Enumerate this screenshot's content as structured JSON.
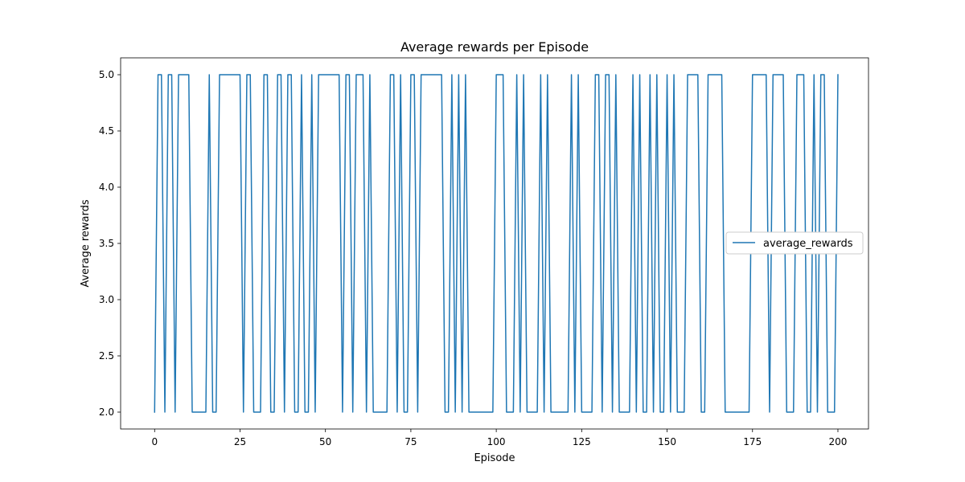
{
  "chart_data": {
    "type": "line",
    "title": "Average rewards per Episode",
    "xlabel": "Episode",
    "ylabel": "Average rewards",
    "xlim": [
      -9.95,
      208.95
    ],
    "ylim": [
      1.85,
      5.15
    ],
    "xticks": [
      0,
      25,
      50,
      75,
      100,
      125,
      150,
      175,
      200
    ],
    "yticks": [
      2.0,
      2.5,
      3.0,
      3.5,
      4.0,
      4.5,
      5.0
    ],
    "xtick_labels": [
      "0",
      "25",
      "50",
      "75",
      "100",
      "125",
      "150",
      "175",
      "200"
    ],
    "ytick_labels": [
      "2.0",
      "2.5",
      "3.0",
      "3.5",
      "4.0",
      "4.5",
      "5.0"
    ],
    "grid": false,
    "legend_position": "center-right",
    "series": [
      {
        "name": "average_rewards",
        "color": "#1f77b4",
        "values": [
          2,
          5,
          5,
          2,
          5,
          5,
          2,
          5,
          5,
          5,
          5,
          2,
          2,
          2,
          2,
          2,
          5,
          2,
          2,
          5,
          5,
          5,
          5,
          5,
          5,
          5,
          2,
          5,
          5,
          2,
          2,
          2,
          5,
          5,
          2,
          2,
          5,
          5,
          2,
          5,
          5,
          2,
          2,
          5,
          2,
          2,
          5,
          2,
          5,
          5,
          5,
          5,
          5,
          5,
          5,
          2,
          5,
          5,
          2,
          5,
          5,
          5,
          2,
          5,
          2,
          2,
          2,
          2,
          2,
          5,
          5,
          2,
          5,
          2,
          2,
          5,
          5,
          2,
          5,
          5,
          5,
          5,
          5,
          5,
          5,
          2,
          2,
          5,
          2,
          5,
          2,
          5,
          2,
          2,
          2,
          2,
          2,
          2,
          2,
          2,
          5,
          5,
          5,
          2,
          2,
          2,
          5,
          2,
          5,
          2,
          2,
          2,
          2,
          5,
          2,
          5,
          2,
          2,
          2,
          2,
          2,
          2,
          5,
          2,
          5,
          2,
          2,
          2,
          2,
          5,
          5,
          2,
          5,
          5,
          2,
          5,
          2,
          2,
          2,
          2,
          5,
          2,
          5,
          2,
          2,
          5,
          2,
          5,
          2,
          2,
          5,
          2,
          5,
          2,
          2,
          2,
          5,
          5,
          5,
          5,
          2,
          2,
          5,
          5,
          5,
          5,
          5,
          2,
          2,
          2,
          2,
          2,
          2,
          2,
          2,
          5,
          5,
          5,
          5,
          5,
          2,
          5,
          5,
          5,
          5,
          2,
          2,
          2,
          5,
          5,
          5,
          2,
          2,
          5,
          2,
          5,
          5,
          2,
          2,
          2,
          5
        ]
      }
    ]
  }
}
